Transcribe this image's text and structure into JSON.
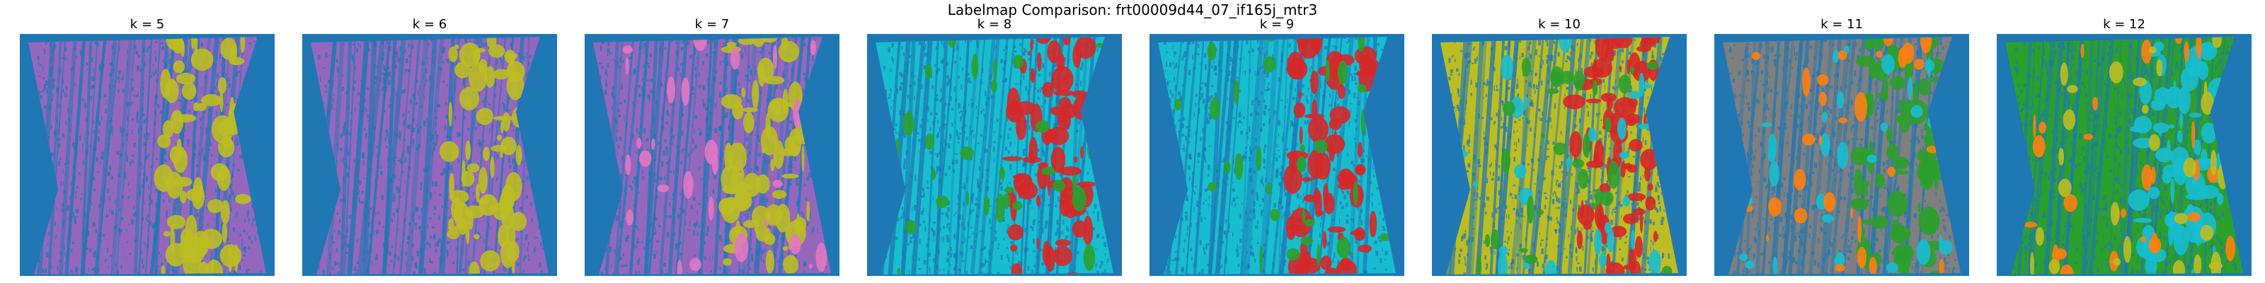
{
  "title": "Labelmap Comparison: frt00009d44_07_if165j_mtr3",
  "chart_data": [
    {
      "type": "heatmap",
      "title": "k = 5",
      "k": 5,
      "dominant": "#9467bd",
      "colors": [
        "#1f77b4",
        "#9467bd",
        "#bcbd22"
      ]
    },
    {
      "type": "heatmap",
      "title": "k = 6",
      "k": 6,
      "dominant": "#9467bd",
      "colors": [
        "#1f77b4",
        "#9467bd",
        "#bcbd22"
      ]
    },
    {
      "type": "heatmap",
      "title": "k = 7",
      "k": 7,
      "dominant": "#9467bd",
      "colors": [
        "#1f77b4",
        "#9467bd",
        "#bcbd22",
        "#e377c2"
      ]
    },
    {
      "type": "heatmap",
      "title": "k = 8",
      "k": 8,
      "dominant": "#17becf",
      "colors": [
        "#1f77b4",
        "#17becf",
        "#d62728",
        "#2ca02c"
      ]
    },
    {
      "type": "heatmap",
      "title": "k = 9",
      "k": 9,
      "dominant": "#17becf",
      "colors": [
        "#1f77b4",
        "#17becf",
        "#d62728",
        "#2ca02c"
      ]
    },
    {
      "type": "heatmap",
      "title": "k = 10",
      "k": 10,
      "dominant": "#bcbd22",
      "colors": [
        "#1f77b4",
        "#bcbd22",
        "#d62728",
        "#17becf",
        "#2ca02c"
      ]
    },
    {
      "type": "heatmap",
      "title": "k = 11",
      "k": 11,
      "dominant": "#7f7f7f",
      "colors": [
        "#1f77b4",
        "#7f7f7f",
        "#2ca02c",
        "#17becf",
        "#ff7f0e"
      ]
    },
    {
      "type": "heatmap",
      "title": "k = 12",
      "k": 12,
      "dominant": "#2ca02c",
      "colors": [
        "#1f77b4",
        "#2ca02c",
        "#17becf",
        "#ff7f0e",
        "#bcbd22"
      ]
    }
  ]
}
